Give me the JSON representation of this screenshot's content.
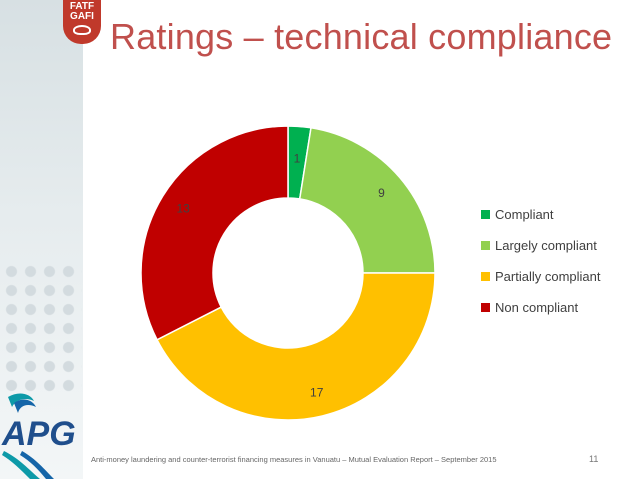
{
  "slide": {
    "title": "Ratings – technical compliance",
    "footer": "Anti-money laundering and counter-terrorist financing measures in Vanuatu – Mutual Evaluation Report – September 2015",
    "page_number": "11",
    "logo_text": "FATF GAFI",
    "apg_text": "APG"
  },
  "chart_data": {
    "type": "pie",
    "donut": true,
    "categories": [
      "Compliant",
      "Largely compliant",
      "Partially compliant",
      "Non compliant"
    ],
    "values": [
      1,
      9,
      17,
      13
    ],
    "colors": [
      "#00b050",
      "#92d050",
      "#ffc000",
      "#c00000"
    ],
    "legend_position": "right",
    "title": ""
  }
}
